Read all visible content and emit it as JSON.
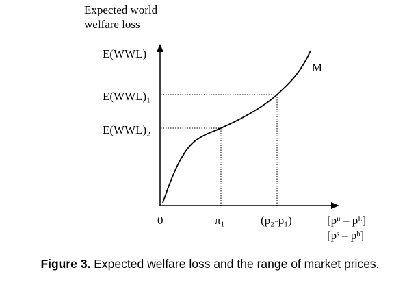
{
  "diagram": {
    "y_axis_title_line1": "Expected world",
    "y_axis_title_line2": "welfare loss",
    "y_axis_top_label": "E(WWL)",
    "level_1_label": "E(WWL)₁",
    "level_2_label": "E(WWL)₂",
    "origin_label": "0",
    "curve_label": "M",
    "x_tick_1_label": "π₁",
    "x_tick_2_label": "(p₂-p₁)",
    "x_axis_label_line1": "[pᵘ – pᴸ]",
    "x_axis_label_line2": "[pˢ – pᵇ]"
  },
  "caption": {
    "prefix": "Figure 3.",
    "text": " Expected welfare loss and the range of market prices."
  }
}
